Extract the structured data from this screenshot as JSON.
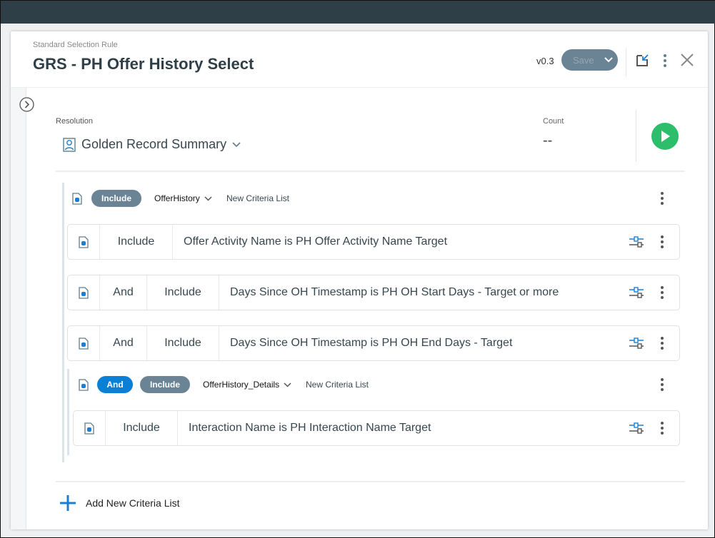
{
  "header": {
    "subtitle": "Standard Selection Rule",
    "title": "GRS - PH Offer History Select",
    "version": "v0.3",
    "save_label": "Save"
  },
  "resolution": {
    "label": "Resolution",
    "value": "Golden Record Summary"
  },
  "count": {
    "label": "Count",
    "value": "--"
  },
  "group": {
    "mode": "Include",
    "table": "OfferHistory",
    "name": "New Criteria List",
    "rows": [
      {
        "conj": "",
        "mode": "Include",
        "text": "Offer Activity Name is PH Offer Activity Name Target"
      },
      {
        "conj": "And",
        "mode": "Include",
        "text": "Days Since OH Timestamp is PH OH Start Days - Target or more"
      },
      {
        "conj": "And",
        "mode": "Include",
        "text": "Days Since OH Timestamp is PH OH End Days - Target"
      }
    ],
    "subgroup": {
      "conj": "And",
      "mode": "Include",
      "table": "OfferHistory_Details",
      "name": "New Criteria List",
      "rows": [
        {
          "conj": "",
          "mode": "Include",
          "text": "Interaction Name is PH Interaction Name Target"
        }
      ]
    }
  },
  "footer": {
    "add_label": "Add New Criteria List"
  },
  "colors": {
    "topbar": "#2f3f48",
    "include_pill": "#6a8496",
    "and_pill": "#0a7fd6",
    "run": "#2dbe6c",
    "accent": "#1a7fd4"
  }
}
